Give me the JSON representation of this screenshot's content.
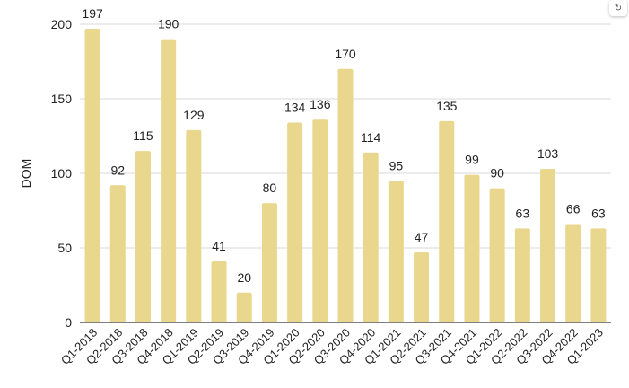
{
  "chart_data": {
    "type": "bar",
    "title": "",
    "xlabel": "",
    "ylabel": "DOM",
    "ylim": [
      0,
      200
    ],
    "yticks": [
      0,
      50,
      100,
      150,
      200
    ],
    "grid": true,
    "legend": null,
    "bar_color": "#E8D78C",
    "categories": [
      "Q1-2018",
      "Q2-2018",
      "Q3-2018",
      "Q4-2018",
      "Q1-2019",
      "Q2-2019",
      "Q3-2019",
      "Q4-2019",
      "Q1-2020",
      "Q2-2020",
      "Q3-2020",
      "Q4-2020",
      "Q1-2021",
      "Q2-2021",
      "Q3-2021",
      "Q4-2021",
      "Q1-2022",
      "Q2-2022",
      "Q3-2022",
      "Q4-2022",
      "Q1-2023"
    ],
    "values": [
      197,
      92,
      115,
      190,
      129,
      41,
      20,
      80,
      134,
      136,
      170,
      114,
      95,
      47,
      135,
      99,
      90,
      63,
      103,
      66,
      63
    ],
    "data_labels": true
  },
  "controls": {
    "refresh_icon": "↻"
  }
}
